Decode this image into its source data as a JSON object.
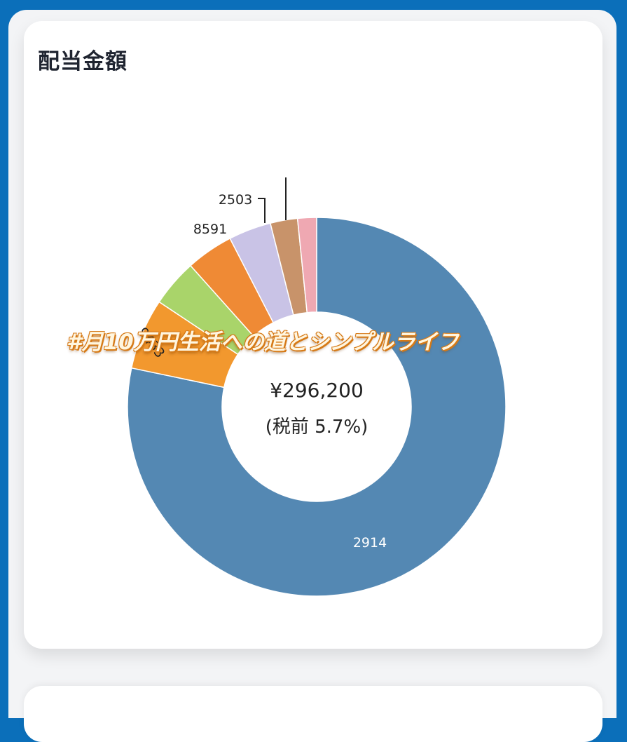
{
  "card": {
    "title": "配当金額"
  },
  "center": {
    "amount": "¥296,200",
    "ratio": "(税前 5.7%)"
  },
  "watermark": "#月10万円生活への道とシンプルライフ",
  "chart_data": {
    "type": "pie",
    "variant": "donut",
    "title": "配当金額",
    "center_text": [
      "¥296,200",
      "(税前 5.7%)"
    ],
    "slices": [
      {
        "label": "2914",
        "value": 77.5,
        "color": "#5488b3"
      },
      {
        "label": "9433",
        "value": 6.0,
        "color": "#f2982e"
      },
      {
        "label": "",
        "value": 4.0,
        "color": "#a9d46a"
      },
      {
        "label": "8591",
        "value": 4.0,
        "color": "#ef8a35"
      },
      {
        "label": "2503",
        "value": 3.6,
        "color": "#c9c3e6"
      },
      {
        "label": "",
        "value": 2.3,
        "color": "#c8936a"
      },
      {
        "label": "",
        "value": 1.6,
        "color": "#efa8b2"
      }
    ],
    "legend": "none"
  }
}
